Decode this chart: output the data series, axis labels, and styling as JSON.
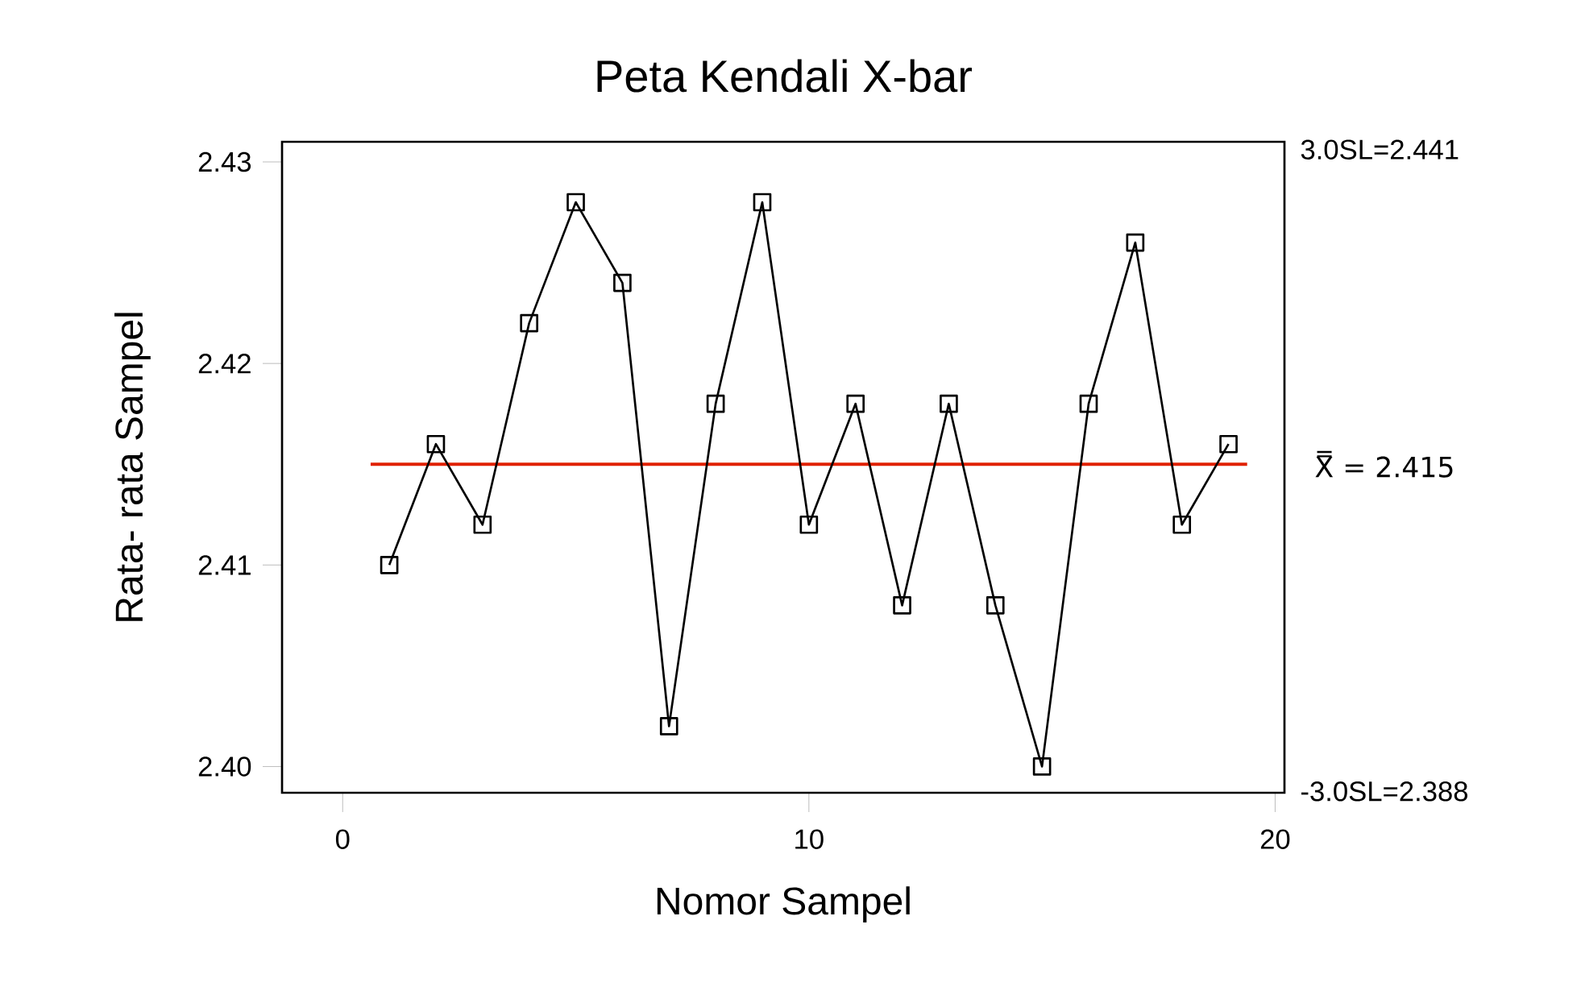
{
  "chart_data": {
    "type": "line",
    "title": "Peta Kendali X-bar",
    "xlabel": "Nomor Sampel",
    "ylabel": "Rata- rata Sampel",
    "x": [
      1,
      2,
      3,
      4,
      5,
      6,
      7,
      8,
      9,
      10,
      11,
      12,
      13,
      14,
      15,
      16,
      17,
      18,
      19
    ],
    "series": [
      {
        "color": "#000000",
        "values": [
          2.41,
          2.416,
          2.412,
          2.422,
          2.428,
          2.424,
          2.402,
          2.418,
          2.428,
          2.412,
          2.418,
          2.408,
          2.418,
          2.408,
          2.4,
          2.418,
          2.426,
          2.412,
          2.416
        ]
      }
    ],
    "xlim": [
      -1.3,
      20.2
    ],
    "ylim": [
      2.3987,
      2.431
    ],
    "xticks": [
      0,
      10,
      20
    ],
    "yticks": [
      {
        "value": 2.4,
        "label": "2.40"
      },
      2.41,
      2.42,
      2.43
    ],
    "ref_lines": [
      {
        "axis": "y",
        "value": 2.415,
        "label": "X̿ = 2.415",
        "color": "#e02000"
      }
    ],
    "annotations": [
      "3.0SL=2.441",
      "-3.0SL=2.388"
    ],
    "marker": "square",
    "line_style": "solid",
    "grid": false
  }
}
